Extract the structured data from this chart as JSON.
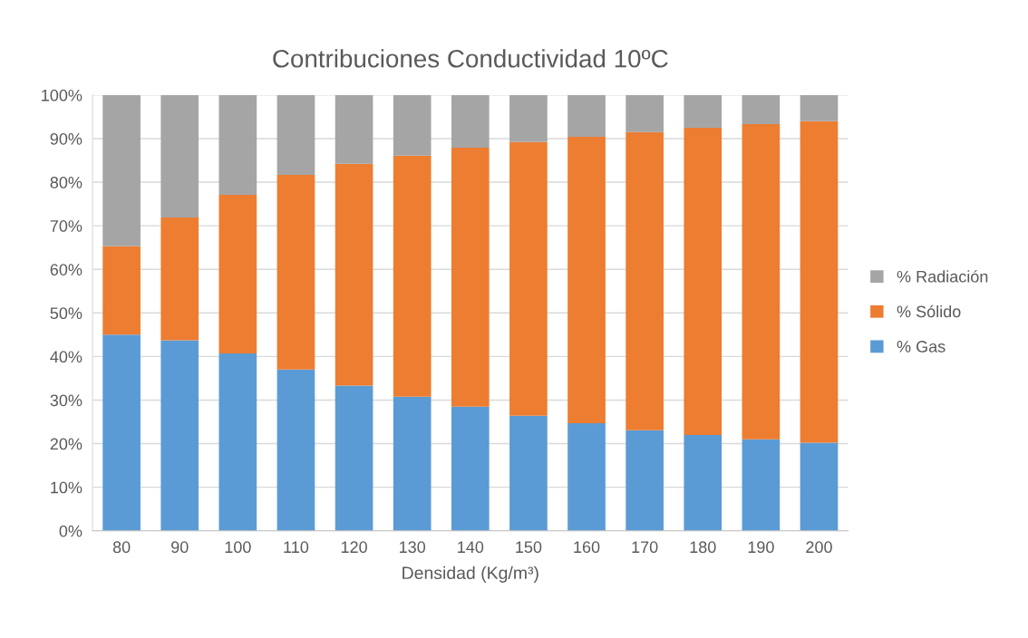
{
  "chart_data": {
    "type": "bar",
    "title": "Contribuciones Conductividad 10ºC",
    "xlabel": "Densidad (Kg/m³)",
    "categories": [
      "80",
      "90",
      "100",
      "110",
      "120",
      "130",
      "140",
      "150",
      "160",
      "170",
      "180",
      "190",
      "200"
    ],
    "stacked": true,
    "series": [
      {
        "name": "% Gas",
        "color": "#5b9bd5",
        "values": [
          45,
          43.7,
          40.7,
          37,
          33.3,
          30.8,
          28.5,
          26.4,
          24.7,
          23.1,
          22,
          21,
          20.2
        ]
      },
      {
        "name": "% Sólido",
        "color": "#ed7d31",
        "values": [
          20.3,
          28.2,
          36.4,
          44.7,
          50.9,
          55.3,
          59.4,
          62.8,
          65.7,
          68.4,
          70.5,
          72.3,
          73.8
        ]
      },
      {
        "name": "% Radiación",
        "color": "#a5a5a5",
        "values": [
          34.7,
          28.1,
          22.9,
          18.3,
          15.8,
          13.9,
          12.1,
          10.8,
          9.6,
          8.5,
          7.5,
          6.7,
          6.0
        ]
      }
    ],
    "ylim": [
      0,
      100
    ],
    "yticks": [
      {
        "value": 0,
        "label": "0%"
      },
      {
        "value": 10,
        "label": "10%"
      },
      {
        "value": 20,
        "label": "20%"
      },
      {
        "value": 30,
        "label": "30%"
      },
      {
        "value": 40,
        "label": "40%"
      },
      {
        "value": 50,
        "label": "50%"
      },
      {
        "value": 60,
        "label": "60%"
      },
      {
        "value": 70,
        "label": "70%"
      },
      {
        "value": 80,
        "label": "80%"
      },
      {
        "value": 90,
        "label": "90%"
      },
      {
        "value": 100,
        "label": "100%"
      }
    ],
    "grid": "y",
    "legend": "right"
  }
}
